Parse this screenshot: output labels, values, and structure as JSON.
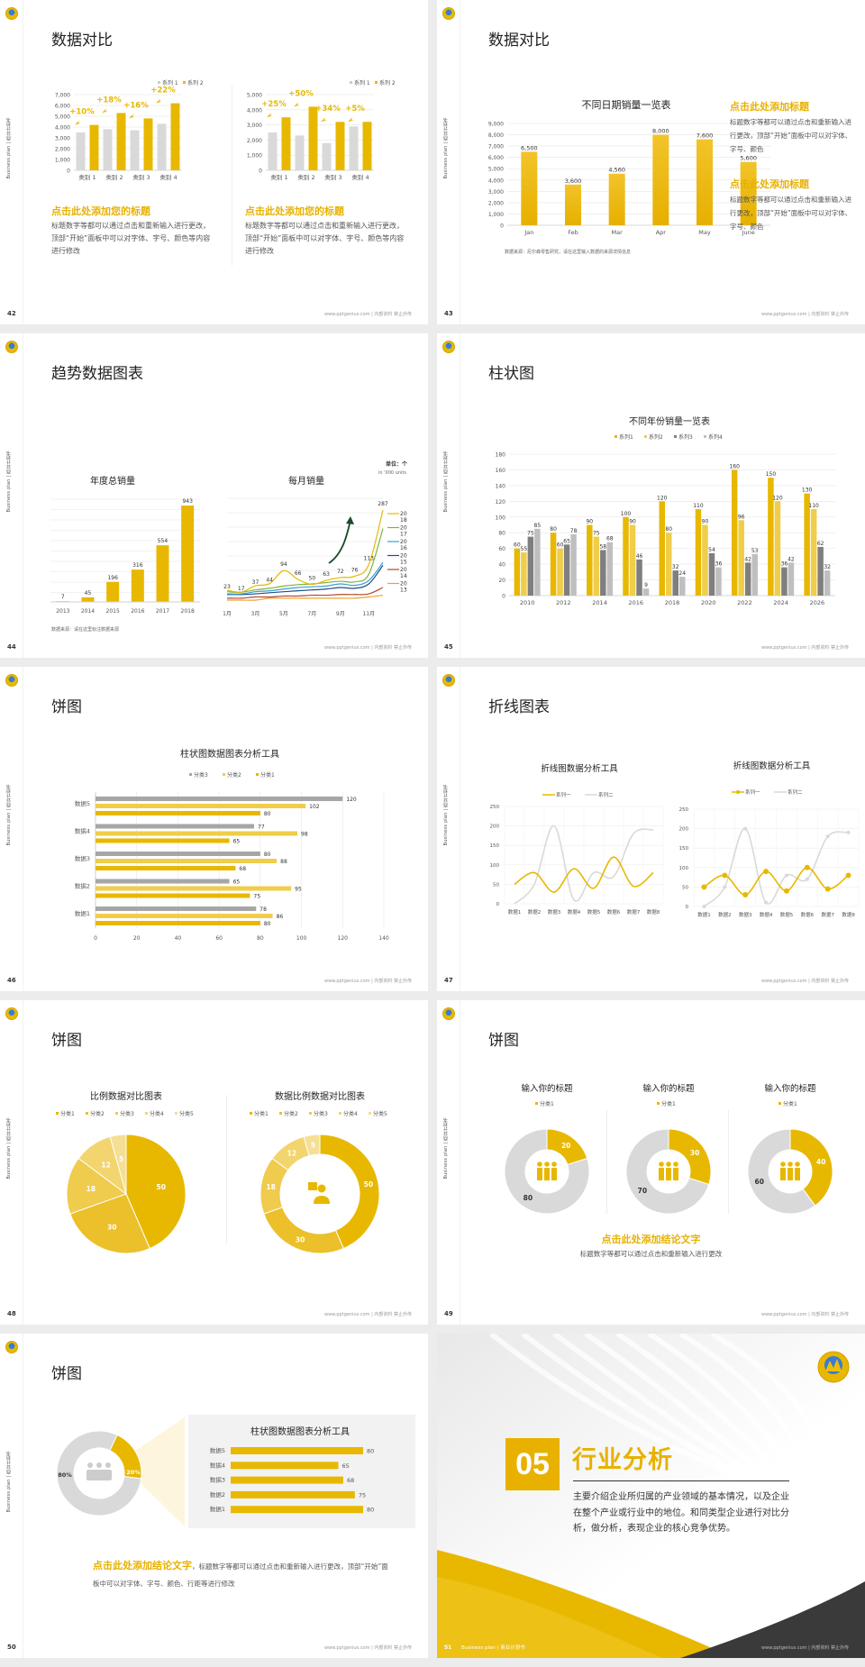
{
  "common": {
    "sidebar_text": "Business plan | 商业计划书",
    "footer_text": "www.pptgenius.com | 内部资料 禁止外传"
  },
  "slides": [
    {
      "page": "42",
      "title": "数据对比",
      "left": {
        "legend": [
          "系列 1",
          "系列 2"
        ],
        "heading": "点击此处添加您的标题",
        "body": "标题数字等都可以通过点击和重新输入进行更改，顶部“开始”面板中可以对字体、字号、颜色等内容进行修改"
      },
      "right": {
        "legend": [
          "系列 1",
          "系列 2"
        ],
        "heading": "点击此处添加您的标题",
        "body": "标题数字等都可以通过点击和重新输入进行更改，顶部“开始”面板中可以对字体、字号、颜色等内容进行修改"
      }
    },
    {
      "page": "43",
      "title": "数据对比",
      "chart_title": "不同日期销量一览表",
      "source": "数据来源：尼尔森零售研究，请在这里输入数据的来源详情信息",
      "blocks": [
        {
          "heading": "点击此处添加标题",
          "body": "标题数字等都可以通过点击和重新输入进行更改，顶部“开始”面板中可以对字体、字号、颜色"
        },
        {
          "heading": "点击此处添加标题",
          "body": "标题数字等都可以通过点击和重新输入进行更改，顶部“开始”面板中可以对字体、字号、颜色"
        }
      ]
    },
    {
      "page": "44",
      "title": "趋势数据图表",
      "left_title": "年度总销量",
      "right_title": "每月销量",
      "unit": "单位：个",
      "unit_sub": "in '000 units",
      "source": "数据来源：请在这里标注数据来源"
    },
    {
      "page": "45",
      "title": "柱状图",
      "chart_title": "不同年份销量一览表"
    },
    {
      "page": "46",
      "title": "饼图",
      "chart_title": "柱状图数据图表分析工具"
    },
    {
      "page": "47",
      "title": "折线图表",
      "chart_title_left": "折线图数据分析工具",
      "chart_title_right": "折线图数据分析工具"
    },
    {
      "page": "48",
      "title": "饼图",
      "left_title": "比例数据对比图表",
      "right_title": "数据比例数据对比图表"
    },
    {
      "page": "49",
      "title": "饼图",
      "donut_titles": [
        "输入你的标题",
        "输入你的标题",
        "输入你的标题"
      ],
      "legend": "分类1",
      "conclusion": "点击此处添加结论文字",
      "conclusion_body": "标题数字等都可以通过点击和重新输入进行更改"
    },
    {
      "page": "50",
      "title": "饼图",
      "chart_title": "柱状图数据图表分析工具",
      "conclusion": "点击此处添加结论文字",
      "conclusion_body": "，标题数字等都可以通过点击和重新输入进行更改，顶部“开始”面板中可以对字体、字号、颜色、行距等进行修改"
    },
    {
      "page": "51",
      "section_number": "05",
      "section_title": "行业分析",
      "section_body": "主要介绍企业所归属的产业领域的基本情况，以及企业在整个产业或行业中的地位。和同类型企业进行对比分析，做分析，表现企业的核心竞争优势。",
      "footer_left": "Business plan | 商业计划书"
    }
  ],
  "colors": {
    "yellow": "#e8b800",
    "yellow_light": "#f0cd4a",
    "gray": "#d9d9d9",
    "dark_gray": "#7f7f7f",
    "mid_gray": "#a6a6a6"
  },
  "chart_data": [
    {
      "type": "bar",
      "title": "",
      "slide": "42-left",
      "categories": [
        "类别 1",
        "类别 2",
        "类别 3",
        "类别 4"
      ],
      "series": [
        {
          "name": "系列 1",
          "values": [
            3500,
            3800,
            3700,
            4300
          ]
        },
        {
          "name": "系列 2",
          "values": [
            4200,
            5300,
            4800,
            6200
          ]
        }
      ],
      "annotations": [
        "+10%",
        "+18%",
        "+16%",
        "+22%"
      ],
      "yticks": [
        0,
        1000,
        2000,
        3000,
        4000,
        5000,
        6000,
        7000
      ],
      "ylim": [
        0,
        7000
      ]
    },
    {
      "type": "bar",
      "title": "",
      "slide": "42-right",
      "categories": [
        "类别 1",
        "类别 2",
        "类别 3",
        "类别 4"
      ],
      "series": [
        {
          "name": "系列 1",
          "values": [
            2500,
            2300,
            1800,
            2900
          ]
        },
        {
          "name": "系列 2",
          "values": [
            3500,
            4200,
            3200,
            3200
          ]
        }
      ],
      "annotations": [
        "+25%",
        "+50%",
        "+34%",
        "+5%"
      ],
      "yticks": [
        0,
        1000,
        2000,
        3000,
        4000,
        5000
      ],
      "ylim": [
        0,
        5000
      ]
    },
    {
      "type": "bar",
      "title": "不同日期销量一览表",
      "slide": "43",
      "categories": [
        "Jan",
        "Feb",
        "Mar",
        "Apr",
        "May",
        "June"
      ],
      "values": [
        6500,
        3600,
        4560,
        8000,
        7600,
        5600
      ],
      "labels": [
        "6,500",
        "3,600",
        "4,560",
        "8,000",
        "7,600",
        "5,600"
      ],
      "yticks": [
        0,
        1000,
        2000,
        3000,
        4000,
        5000,
        6000,
        7000,
        8000,
        9000
      ],
      "ylim": [
        0,
        9000
      ]
    },
    {
      "type": "bar",
      "title": "年度总销量",
      "slide": "44-left",
      "categories": [
        "2013",
        "2014",
        "2015",
        "2016",
        "2017",
        "2018"
      ],
      "values": [
        7,
        45,
        196,
        316,
        554,
        943
      ]
    },
    {
      "type": "line",
      "title": "每月销量",
      "slide": "44-right",
      "x": [
        "1月",
        "2月",
        "3月",
        "4月",
        "5月",
        "6月",
        "7月",
        "8月",
        "9月",
        "10月",
        "11月",
        "12月"
      ],
      "xticks": [
        "1月",
        "3月",
        "5月",
        "7月",
        "9月",
        "11月"
      ],
      "series": [
        {
          "name": "2018",
          "color": "#e8b800",
          "values": [
            23,
            17,
            37,
            44,
            94,
            66,
            50,
            63,
            72,
            76,
            113,
            287
          ]
        },
        {
          "name": "2017",
          "color": "#7fb23a",
          "values": [
            10,
            9,
            14,
            18,
            24,
            28,
            30,
            34,
            38,
            36,
            60,
            220
          ]
        },
        {
          "name": "2016",
          "color": "#3aa0d0",
          "values": [
            6,
            6,
            10,
            12,
            16,
            20,
            22,
            24,
            30,
            26,
            40,
            100
          ]
        },
        {
          "name": "2015",
          "color": "#1f4e8c",
          "values": [
            5,
            5,
            6,
            8,
            10,
            12,
            14,
            16,
            20,
            18,
            30,
            90
          ]
        },
        {
          "name": "2014",
          "color": "#b04a2a",
          "values": [
            1,
            1,
            2,
            2,
            3,
            3,
            4,
            4,
            5,
            5,
            6,
            20
          ]
        },
        {
          "name": "2013",
          "color": "#f0a030",
          "values": [
            0,
            0,
            0,
            1,
            1,
            1,
            1,
            1,
            1,
            1,
            2,
            4
          ]
        }
      ],
      "labels_2018": [
        "23",
        "17",
        "37",
        "44",
        "94",
        "66",
        "50",
        "63",
        "72",
        "76",
        "113",
        "287"
      ],
      "unit": "单位：个 in '000 units"
    },
    {
      "type": "bar",
      "title": "不同年份销量一览表",
      "slide": "45",
      "categories": [
        "2010",
        "2012",
        "2014",
        "2016",
        "2018",
        "2020",
        "2022",
        "2024",
        "2026"
      ],
      "series": [
        {
          "name": "系列1",
          "values": [
            60,
            80,
            90,
            100,
            120,
            110,
            160,
            150,
            130
          ]
        },
        {
          "name": "系列2",
          "values": [
            55,
            60,
            75,
            90,
            80,
            90,
            96,
            120,
            110
          ]
        },
        {
          "name": "系列3",
          "values": [
            75,
            65,
            58,
            46,
            32,
            54,
            42,
            36,
            62
          ]
        },
        {
          "name": "系列4",
          "values": [
            85,
            78,
            68,
            9,
            24,
            36,
            53,
            42,
            32
          ]
        }
      ],
      "yticks": [
        0,
        20,
        40,
        60,
        80,
        100,
        120,
        140,
        160,
        180
      ],
      "ylim": [
        0,
        180
      ]
    },
    {
      "type": "bar",
      "orientation": "horizontal",
      "title": "柱状图数据图表分析工具",
      "slide": "46",
      "categories": [
        "数据5",
        "数据4",
        "数据3",
        "数据2",
        "数据1"
      ],
      "series": [
        {
          "name": "分类3",
          "values": [
            120,
            77,
            80,
            65,
            78
          ]
        },
        {
          "name": "分类2",
          "values": [
            102,
            98,
            88,
            95,
            86
          ]
        },
        {
          "name": "分类1",
          "values": [
            80,
            65,
            68,
            75,
            80
          ]
        }
      ],
      "xticks": [
        0,
        20,
        40,
        60,
        80,
        100,
        120,
        140
      ],
      "xlim": [
        0,
        140
      ]
    },
    {
      "type": "line",
      "title": "折线图数据分析工具",
      "slide": "47-left",
      "x": [
        "数据1",
        "数据2",
        "数据3",
        "数据4",
        "数据5",
        "数据6",
        "数据7",
        "数据8"
      ],
      "series": [
        {
          "name": "系列一",
          "values": [
            50,
            80,
            30,
            90,
            40,
            120,
            45,
            80
          ]
        },
        {
          "name": "系列二",
          "values": [
            0,
            50,
            200,
            10,
            80,
            70,
            180,
            190
          ]
        }
      ],
      "yticks": [
        0,
        50,
        100,
        150,
        200,
        250
      ],
      "ylim": [
        0,
        250
      ]
    },
    {
      "type": "line",
      "title": "折线图数据分析工具",
      "slide": "47-right",
      "x": [
        "数据1",
        "数据2",
        "数据3",
        "数据4",
        "数据5",
        "数据6",
        "数据7",
        "数据8"
      ],
      "series": [
        {
          "name": "系列一",
          "values": [
            50,
            80,
            30,
            90,
            40,
            100,
            45,
            80
          ]
        },
        {
          "name": "系列二",
          "values": [
            0,
            50,
            200,
            10,
            80,
            70,
            180,
            190
          ]
        }
      ],
      "yticks": [
        0,
        50,
        100,
        150,
        200,
        250
      ],
      "ylim": [
        0,
        250
      ]
    },
    {
      "type": "pie",
      "title": "比例数据对比图表",
      "slide": "48-left",
      "categories": [
        "分类1",
        "分类2",
        "分类3",
        "分类4",
        "分类5"
      ],
      "values": [
        50,
        30,
        18,
        12,
        5
      ]
    },
    {
      "type": "pie",
      "title": "数据比例数据对比图表",
      "slide": "48-right",
      "donut": true,
      "categories": [
        "分类1",
        "分类2",
        "分类3",
        "分类4",
        "分类5"
      ],
      "values": [
        50,
        30,
        18,
        12,
        5
      ]
    },
    {
      "type": "pie",
      "donut": true,
      "slide": "49",
      "charts": [
        {
          "title": "输入你的标题",
          "values": [
            20,
            80
          ]
        },
        {
          "title": "输入你的标题",
          "values": [
            30,
            70
          ]
        },
        {
          "title": "输入你的标题",
          "values": [
            40,
            60
          ]
        }
      ]
    },
    {
      "type": "pie",
      "donut": true,
      "slide": "50-donut",
      "categories": [
        "20%",
        "80%"
      ],
      "values": [
        20,
        80
      ]
    },
    {
      "type": "bar",
      "orientation": "horizontal",
      "title": "柱状图数据图表分析工具",
      "slide": "50-bars",
      "categories": [
        "数据5",
        "数据4",
        "数据3",
        "数据2",
        "数据1"
      ],
      "values": [
        80,
        65,
        68,
        75,
        80
      ]
    }
  ]
}
